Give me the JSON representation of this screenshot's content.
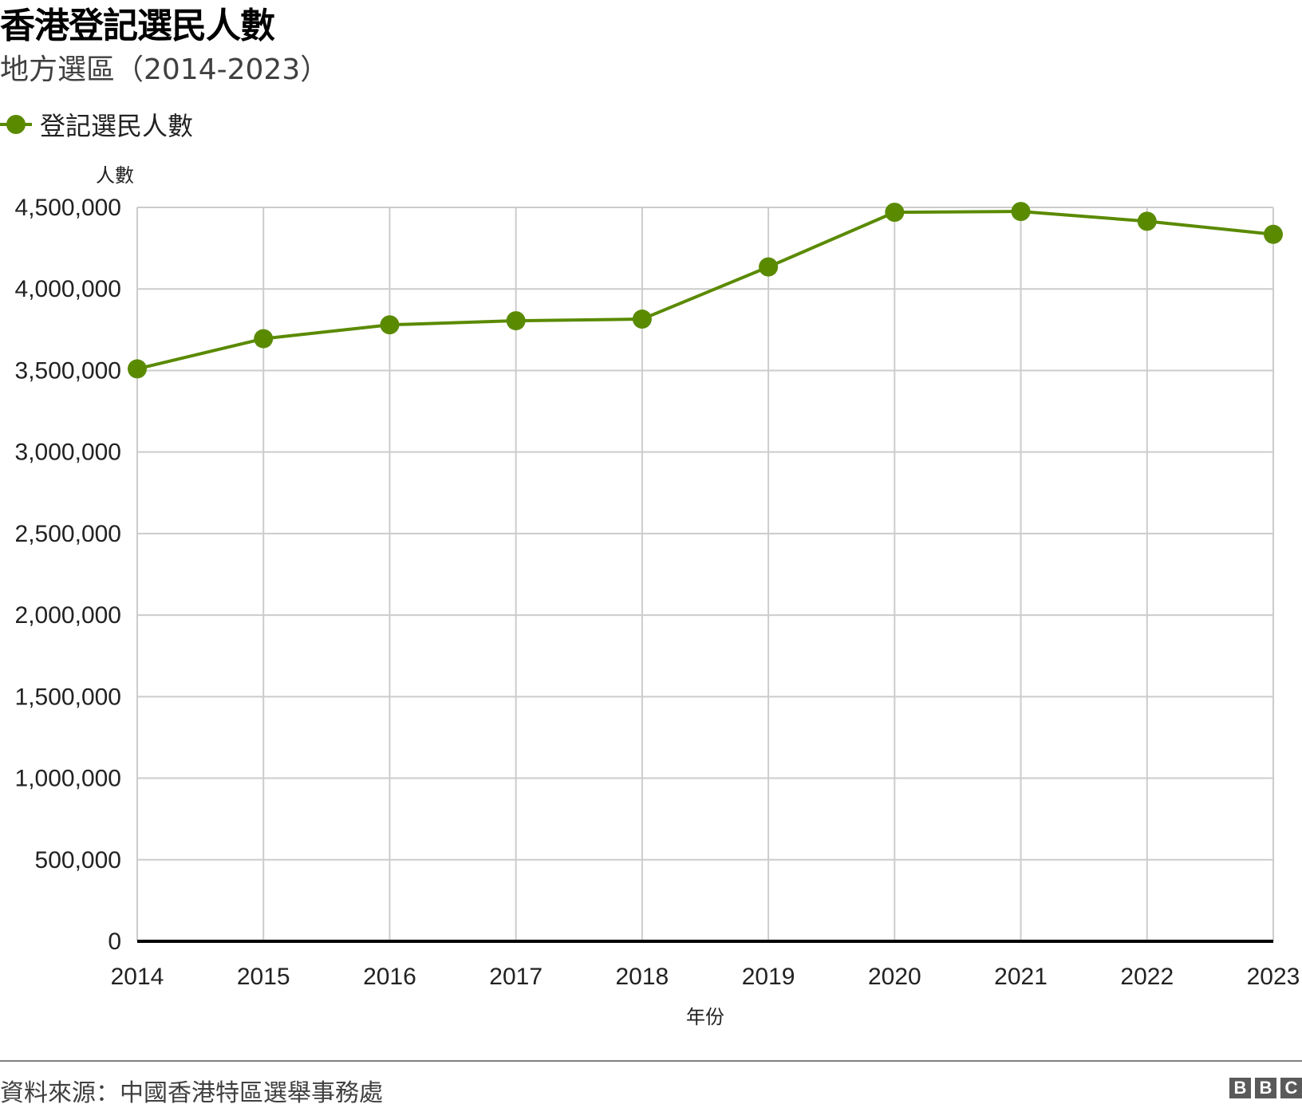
{
  "header": {
    "title": "香港登記選民人數",
    "subtitle": "地方選區（2014-2023）"
  },
  "legend": {
    "items": [
      {
        "label": "登記選民人數",
        "color": "#5a8a00",
        "icon": "line-marker-circle-icon"
      }
    ]
  },
  "axes": {
    "y_title": "人數",
    "x_title": "年份",
    "y_ticks": [
      "0",
      "500,000",
      "1,000,000",
      "1,500,000",
      "2,000,000",
      "2,500,000",
      "3,000,000",
      "3,500,000",
      "4,000,000",
      "4,500,000"
    ],
    "x_ticks": [
      "2014",
      "2015",
      "2016",
      "2017",
      "2018",
      "2019",
      "2020",
      "2021",
      "2022",
      "2023"
    ]
  },
  "footer": {
    "source": "資料來源：中國香港特區選舉事務處",
    "logo_letters": [
      "B",
      "B",
      "C"
    ]
  },
  "colors": {
    "series": "#5a8a00",
    "grid": "#cccccc",
    "baseline": "#000000",
    "footer_rule": "#808080",
    "logo_bg": "#5a5a5a"
  },
  "chart_data": {
    "type": "line",
    "title": "香港登記選民人數",
    "subtitle": "地方選區（2014-2023）",
    "xlabel": "年份",
    "ylabel": "人數",
    "categories": [
      "2014",
      "2015",
      "2016",
      "2017",
      "2018",
      "2019",
      "2020",
      "2021",
      "2022",
      "2023"
    ],
    "series": [
      {
        "name": "登記選民人數",
        "color": "#5a8a00",
        "values": [
          3510000,
          3695000,
          3780000,
          3805000,
          3815000,
          4135000,
          4470000,
          4475000,
          4415000,
          4335000
        ]
      }
    ],
    "ylim": [
      0,
      4500000
    ],
    "y_tick_step": 500000,
    "grid": true,
    "legend_position": "top-left",
    "source": "資料來源：中國香港特區選舉事務處"
  }
}
